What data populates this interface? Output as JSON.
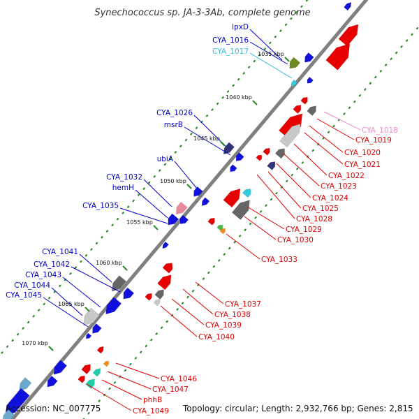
{
  "title": "Synechococcus sp. JA-3-3Ab, complete genome",
  "footer": {
    "accession": "Accession: NC_007775",
    "topology": "Topology: circular; Length: 2,932,766 bp; Genes: 2,815"
  },
  "colors": {
    "backbone": "#888888",
    "minus_label": "#0000cc",
    "plus_label": "#dd0000",
    "highlight_cyan": "#33bbdd",
    "highlight_pink": "#ee88cc",
    "tick_green": "#228822"
  },
  "ticks": [
    "1035 kbp",
    "1040 kbp",
    "1045 kbp",
    "1050 kbp",
    "1055 kbp",
    "1060 kbp",
    "1065 kbp",
    "1070 kbp"
  ],
  "minus_labels": [
    {
      "text": "lpxD",
      "color": "#0000cc"
    },
    {
      "text": "CYA_1016",
      "color": "#0000cc"
    },
    {
      "text": "CYA_1017",
      "color": "#33bbdd"
    },
    {
      "text": "CYA_1026",
      "color": "#0000cc"
    },
    {
      "text": "msrB",
      "color": "#0000cc"
    },
    {
      "text": "ubiA",
      "color": "#0000cc"
    },
    {
      "text": "CYA_1032",
      "color": "#0000cc"
    },
    {
      "text": "hemH",
      "color": "#0000cc"
    },
    {
      "text": "CYA_1035",
      "color": "#0000cc"
    },
    {
      "text": "CYA_1041",
      "color": "#0000cc"
    },
    {
      "text": "CYA_1042",
      "color": "#0000cc"
    },
    {
      "text": "CYA_1043",
      "color": "#0000cc"
    },
    {
      "text": "CYA_1044",
      "color": "#0000cc"
    },
    {
      "text": "CYA_1045",
      "color": "#0000cc"
    }
  ],
  "plus_labels": [
    {
      "text": "CYA_1018",
      "color": "#ee88cc"
    },
    {
      "text": "CYA_1019",
      "color": "#dd0000"
    },
    {
      "text": "CYA_1020",
      "color": "#dd0000"
    },
    {
      "text": "CYA_1021",
      "color": "#dd0000"
    },
    {
      "text": "CYA_1022",
      "color": "#dd0000"
    },
    {
      "text": "CYA_1023",
      "color": "#dd0000"
    },
    {
      "text": "CYA_1024",
      "color": "#dd0000"
    },
    {
      "text": "CYA_1025",
      "color": "#dd0000"
    },
    {
      "text": "CYA_1028",
      "color": "#dd0000"
    },
    {
      "text": "CYA_1029",
      "color": "#dd0000"
    },
    {
      "text": "CYA_1030",
      "color": "#dd0000"
    },
    {
      "text": "CYA_1033",
      "color": "#dd0000"
    },
    {
      "text": "CYA_1037",
      "color": "#dd0000"
    },
    {
      "text": "CYA_1038",
      "color": "#dd0000"
    },
    {
      "text": "CYA_1039",
      "color": "#dd0000"
    },
    {
      "text": "CYA_1040",
      "color": "#dd0000"
    },
    {
      "text": "CYA_1046",
      "color": "#dd0000"
    },
    {
      "text": "CYA_1047",
      "color": "#dd0000"
    },
    {
      "text": "phhB",
      "color": "#dd0000"
    },
    {
      "text": "CYA_1049",
      "color": "#dd0000"
    }
  ]
}
